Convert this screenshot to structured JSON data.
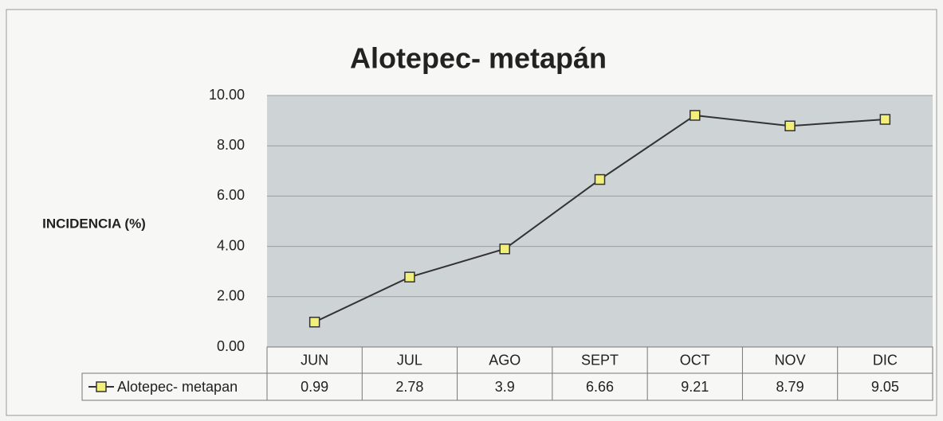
{
  "chart_data": {
    "type": "line",
    "title": "Alotepec- metapán",
    "y_label": "INCIDENCIA (%)",
    "categories": [
      "JUN",
      "JUL",
      "AGO",
      "SEPT",
      "OCT",
      "NOV",
      "DIC"
    ],
    "series": [
      {
        "name": "Alotepec- metapan",
        "color": "#333333",
        "marker_color": "#f2f07a",
        "values": [
          0.99,
          2.78,
          3.9,
          6.66,
          9.21,
          8.79,
          9.05
        ]
      }
    ],
    "ylim": [
      0,
      10
    ],
    "yticks": [
      {
        "value": 0,
        "label": "0.00"
      },
      {
        "value": 2,
        "label": "2.00"
      },
      {
        "value": 4,
        "label": "4.00"
      },
      {
        "value": 6,
        "label": "6.00"
      },
      {
        "value": 8,
        "label": "8.00"
      },
      {
        "value": 10,
        "label": "10.00"
      }
    ],
    "grid": true
  }
}
